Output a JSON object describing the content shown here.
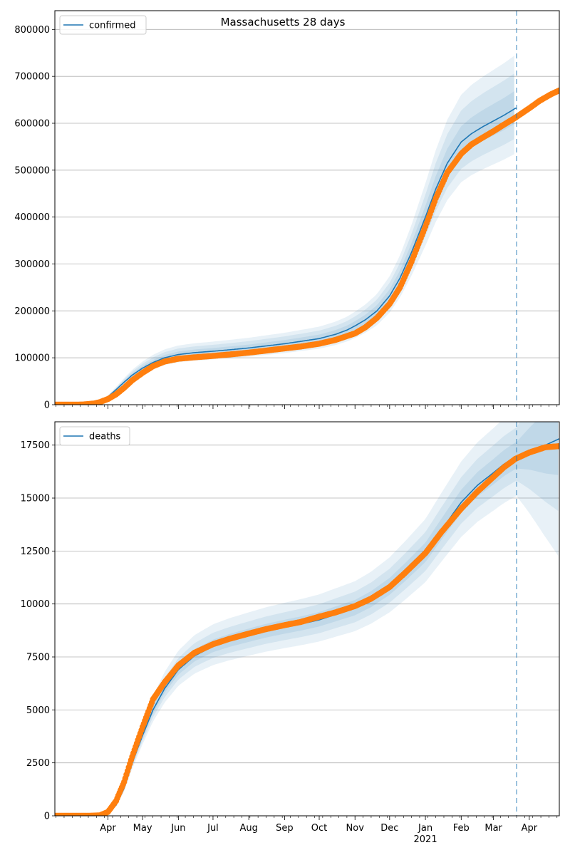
{
  "figure": {
    "title": "Massachusetts 28 days"
  },
  "colors": {
    "model_line": "#1f77b4",
    "band": "#1f77b4",
    "observed": "#ff7f0e",
    "grid": "#b0b0b0",
    "forecast_marker": "#1f77b4"
  },
  "chart_data": [
    {
      "type": "line",
      "name": "confirmed-panel",
      "legend": {
        "entries": [
          "confirmed"
        ],
        "placement": "top-left"
      },
      "xlim": [
        "2020-02-15",
        "2021-04-27"
      ],
      "ylim": [
        0,
        840000
      ],
      "yticks": [
        0,
        100000,
        200000,
        300000,
        400000,
        500000,
        600000,
        700000,
        800000
      ],
      "grid": "y",
      "forecast_start": "2021-03-21",
      "model": {
        "name": "confirmed",
        "x": [
          "2020-02-15",
          "2020-03-01",
          "2020-03-15",
          "2020-03-25",
          "2020-04-01",
          "2020-04-08",
          "2020-04-15",
          "2020-04-22",
          "2020-05-01",
          "2020-05-10",
          "2020-05-20",
          "2020-06-01",
          "2020-06-15",
          "2020-07-01",
          "2020-07-15",
          "2020-08-01",
          "2020-08-15",
          "2020-09-01",
          "2020-09-15",
          "2020-10-01",
          "2020-10-15",
          "2020-10-25",
          "2020-11-01",
          "2020-11-10",
          "2020-11-20",
          "2020-12-01",
          "2020-12-10",
          "2020-12-20",
          "2021-01-01",
          "2021-01-10",
          "2021-01-20",
          "2021-02-01",
          "2021-02-10",
          "2021-02-20",
          "2021-03-01",
          "2021-03-10",
          "2021-03-20"
        ],
        "y": [
          0,
          0,
          1500,
          7000,
          17000,
          32000,
          48000,
          63000,
          78000,
          90000,
          100000,
          107000,
          111000,
          114000,
          117000,
          121000,
          125000,
          130000,
          135000,
          141000,
          150000,
          159000,
          168000,
          181000,
          200000,
          232000,
          270000,
          325000,
          400000,
          460000,
          515000,
          560000,
          578000,
          593000,
          605000,
          617000,
          632000
        ],
        "band_widths": [
          0.06,
          0.12,
          0.18
        ]
      },
      "observed": {
        "x": [
          "2020-02-15",
          "2020-03-01",
          "2020-03-10",
          "2020-03-20",
          "2020-03-25",
          "2020-04-01",
          "2020-04-08",
          "2020-04-15",
          "2020-04-22",
          "2020-05-01",
          "2020-05-10",
          "2020-05-20",
          "2020-06-01",
          "2020-06-15",
          "2020-07-01",
          "2020-07-15",
          "2020-08-01",
          "2020-08-15",
          "2020-09-01",
          "2020-09-15",
          "2020-10-01",
          "2020-10-15",
          "2020-11-01",
          "2020-11-10",
          "2020-11-20",
          "2020-12-01",
          "2020-12-10",
          "2020-12-20",
          "2021-01-01",
          "2021-01-10",
          "2021-01-20",
          "2021-02-01",
          "2021-02-10",
          "2021-02-20",
          "2021-03-01",
          "2021-03-10",
          "2021-03-20",
          "2021-04-01",
          "2021-04-10",
          "2021-04-20",
          "2021-04-27"
        ],
        "y": [
          0,
          0,
          300,
          2500,
          5500,
          12000,
          22000,
          36000,
          52000,
          68000,
          82000,
          92000,
          98000,
          101000,
          104000,
          107000,
          111000,
          115000,
          120000,
          124000,
          130000,
          138000,
          152000,
          165000,
          185000,
          215000,
          250000,
          305000,
          380000,
          440000,
          495000,
          535000,
          555000,
          570000,
          583000,
          597000,
          612000,
          632000,
          648000,
          662000,
          670000
        ]
      }
    },
    {
      "type": "line",
      "name": "deaths-panel",
      "legend": {
        "entries": [
          "deaths"
        ],
        "placement": "top-left"
      },
      "xlim": [
        "2020-02-15",
        "2021-04-27"
      ],
      "ylim": [
        0,
        18600
      ],
      "yticks": [
        0,
        2500,
        5000,
        7500,
        10000,
        12500,
        15000,
        17500
      ],
      "grid": "y",
      "forecast_start": "2021-03-21",
      "xticks": [
        {
          "date": "2020-04-01",
          "label": "Apr"
        },
        {
          "date": "2020-05-01",
          "label": "May"
        },
        {
          "date": "2020-06-01",
          "label": "Jun"
        },
        {
          "date": "2020-07-01",
          "label": "Jul"
        },
        {
          "date": "2020-08-01",
          "label": "Aug"
        },
        {
          "date": "2020-09-01",
          "label": "Sep"
        },
        {
          "date": "2020-10-01",
          "label": "Oct"
        },
        {
          "date": "2020-11-01",
          "label": "Nov"
        },
        {
          "date": "2020-12-01",
          "label": "Dec"
        },
        {
          "date": "2021-01-01",
          "label": "Jan",
          "sublabel": "2021"
        },
        {
          "date": "2021-02-01",
          "label": "Feb"
        },
        {
          "date": "2021-03-01",
          "label": "Mar"
        },
        {
          "date": "2021-04-01",
          "label": "Apr"
        }
      ],
      "model": {
        "name": "deaths",
        "x": [
          "2020-02-15",
          "2020-03-15",
          "2020-03-25",
          "2020-04-01",
          "2020-04-08",
          "2020-04-15",
          "2020-04-22",
          "2020-05-01",
          "2020-05-10",
          "2020-05-20",
          "2020-06-01",
          "2020-06-15",
          "2020-07-01",
          "2020-07-15",
          "2020-08-01",
          "2020-08-15",
          "2020-09-01",
          "2020-09-15",
          "2020-10-01",
          "2020-10-15",
          "2020-11-01",
          "2020-11-15",
          "2020-12-01",
          "2020-12-15",
          "2021-01-01",
          "2021-01-15",
          "2021-02-01",
          "2021-02-15",
          "2021-03-01",
          "2021-03-10",
          "2021-03-20",
          "2021-04-01",
          "2021-04-15",
          "2021-04-27"
        ],
        "y": [
          0,
          0,
          20,
          150,
          500,
          1300,
          2500,
          3800,
          5000,
          6000,
          6900,
          7550,
          8000,
          8250,
          8500,
          8700,
          8900,
          9050,
          9250,
          9500,
          9800,
          10200,
          10800,
          11500,
          12400,
          13500,
          14800,
          15600,
          16200,
          16600,
          16950,
          17250,
          17500,
          17800
        ],
        "band_widths": [
          0.04,
          0.08,
          0.13
        ]
      },
      "observed": {
        "x": [
          "2020-02-15",
          "2020-03-15",
          "2020-03-25",
          "2020-04-01",
          "2020-04-08",
          "2020-04-15",
          "2020-04-22",
          "2020-05-01",
          "2020-05-10",
          "2020-05-20",
          "2020-06-01",
          "2020-06-15",
          "2020-07-01",
          "2020-07-15",
          "2020-08-01",
          "2020-08-15",
          "2020-09-01",
          "2020-09-15",
          "2020-10-01",
          "2020-10-15",
          "2020-11-01",
          "2020-11-15",
          "2020-12-01",
          "2020-12-15",
          "2021-01-01",
          "2021-01-15",
          "2021-02-01",
          "2021-02-15",
          "2021-03-01",
          "2021-03-10",
          "2021-03-20",
          "2021-04-01",
          "2021-04-15",
          "2021-04-27"
        ],
        "y": [
          0,
          0,
          20,
          180,
          700,
          1600,
          2800,
          4200,
          5500,
          6300,
          7100,
          7700,
          8100,
          8350,
          8600,
          8800,
          9000,
          9150,
          9400,
          9600,
          9900,
          10250,
          10800,
          11500,
          12400,
          13400,
          14500,
          15300,
          16000,
          16450,
          16850,
          17150,
          17400,
          17450
        ]
      }
    }
  ]
}
